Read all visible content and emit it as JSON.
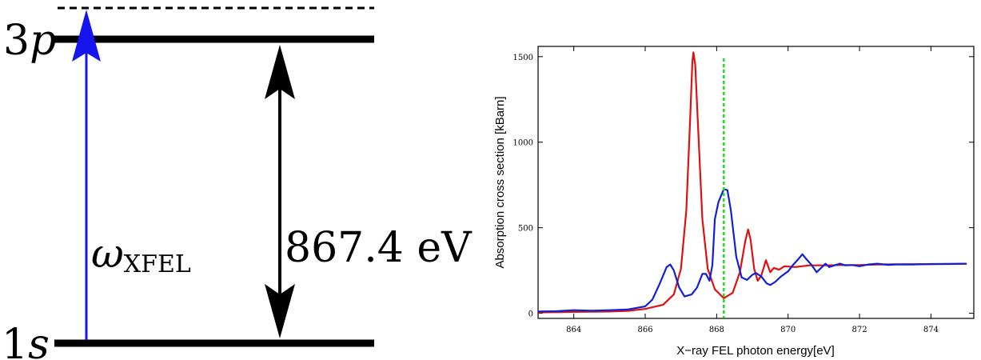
{
  "diagram": {
    "levels": [
      {
        "prefix": "3",
        "italic": "p"
      },
      {
        "prefix": "1",
        "italic": "s"
      }
    ],
    "photon_symbol": "ω",
    "photon_subscript": "XFEL",
    "energy_label": "867.4 eV",
    "colors": {
      "photon_arrow": "#1515ee",
      "levels": "#000000"
    }
  },
  "chart_data": {
    "type": "line",
    "title": "",
    "xlabel": "X−ray FEL photon energy[eV]",
    "ylabel": "Absorption cross section [kBarn]",
    "xlim": [
      863,
      875.2
    ],
    "ylim": [
      -30,
      1560
    ],
    "xticks": [
      864,
      866,
      868,
      870,
      872,
      874
    ],
    "yticks": [
      0,
      500,
      1000,
      1500
    ],
    "grid": false,
    "marker_line": {
      "x": 868.2,
      "y_top": 1490,
      "color": "#22dd22"
    },
    "series": [
      {
        "color": "#e01010",
        "points": [
          [
            863,
            5
          ],
          [
            864,
            8
          ],
          [
            865,
            10
          ],
          [
            865.5,
            14
          ],
          [
            866,
            25
          ],
          [
            866.5,
            50
          ],
          [
            866.8,
            110
          ],
          [
            867,
            260
          ],
          [
            867.15,
            600
          ],
          [
            867.25,
            1100
          ],
          [
            867.32,
            1470
          ],
          [
            867.35,
            1525
          ],
          [
            867.4,
            1450
          ],
          [
            867.5,
            1000
          ],
          [
            867.6,
            550
          ],
          [
            867.75,
            260
          ],
          [
            867.95,
            140
          ],
          [
            868.2,
            88
          ],
          [
            868.45,
            120
          ],
          [
            868.65,
            240
          ],
          [
            868.8,
            420
          ],
          [
            868.88,
            490
          ],
          [
            868.95,
            430
          ],
          [
            869.05,
            260
          ],
          [
            869.15,
            190
          ],
          [
            869.25,
            220
          ],
          [
            869.38,
            310
          ],
          [
            869.5,
            240
          ],
          [
            869.6,
            265
          ],
          [
            869.75,
            255
          ],
          [
            869.9,
            275
          ],
          [
            870.2,
            270
          ],
          [
            870.6,
            280
          ],
          [
            871,
            280
          ],
          [
            871.5,
            282
          ],
          [
            872,
            282
          ],
          [
            872.5,
            285
          ],
          [
            873,
            286
          ],
          [
            873.5,
            287
          ],
          [
            874,
            288
          ],
          [
            874.5,
            289
          ],
          [
            875,
            290
          ]
        ]
      },
      {
        "color": "#1020d8",
        "points": [
          [
            863,
            10
          ],
          [
            863.5,
            12
          ],
          [
            864,
            18
          ],
          [
            864.5,
            15
          ],
          [
            865,
            18
          ],
          [
            865.5,
            22
          ],
          [
            866,
            40
          ],
          [
            866.2,
            80
          ],
          [
            866.4,
            170
          ],
          [
            866.6,
            270
          ],
          [
            866.7,
            285
          ],
          [
            866.8,
            250
          ],
          [
            866.95,
            150
          ],
          [
            867.1,
            98
          ],
          [
            867.3,
            110
          ],
          [
            867.45,
            150
          ],
          [
            867.6,
            230
          ],
          [
            867.7,
            230
          ],
          [
            867.8,
            190
          ],
          [
            867.88,
            280
          ],
          [
            867.95,
            550
          ],
          [
            868.05,
            650
          ],
          [
            868.2,
            725
          ],
          [
            868.3,
            720
          ],
          [
            868.4,
            600
          ],
          [
            868.55,
            330
          ],
          [
            868.7,
            210
          ],
          [
            868.85,
            195
          ],
          [
            869,
            225
          ],
          [
            869.1,
            235
          ],
          [
            869.25,
            215
          ],
          [
            869.4,
            175
          ],
          [
            869.5,
            165
          ],
          [
            869.65,
            185
          ],
          [
            869.8,
            215
          ],
          [
            870,
            245
          ],
          [
            870.15,
            285
          ],
          [
            870.3,
            320
          ],
          [
            870.4,
            345
          ],
          [
            870.5,
            320
          ],
          [
            870.65,
            285
          ],
          [
            870.8,
            240
          ],
          [
            870.95,
            270
          ],
          [
            871.05,
            290
          ],
          [
            871.15,
            270
          ],
          [
            871.3,
            280
          ],
          [
            871.45,
            290
          ],
          [
            871.6,
            280
          ],
          [
            871.8,
            282
          ],
          [
            872,
            275
          ],
          [
            872.25,
            285
          ],
          [
            872.5,
            290
          ],
          [
            872.8,
            283
          ],
          [
            873,
            285
          ],
          [
            873.5,
            285
          ],
          [
            874,
            287
          ],
          [
            874.5,
            288
          ],
          [
            875,
            290
          ]
        ]
      }
    ]
  }
}
